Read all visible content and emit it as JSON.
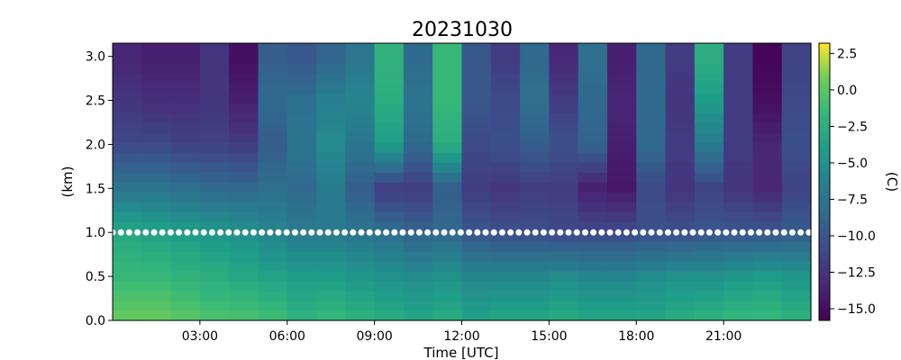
{
  "chart_data": {
    "type": "heatmap",
    "title": "20231030",
    "xlabel": "Time [UTC]",
    "ylabel": "(km)",
    "colorbar_label": "(C)",
    "colormap": "viridis",
    "xlim_hours": [
      0,
      24
    ],
    "ylim_km": [
      0,
      3.15
    ],
    "x_ticks": [
      "03:00",
      "06:00",
      "09:00",
      "12:00",
      "15:00",
      "18:00",
      "21:00"
    ],
    "y_ticks": [
      "0.0",
      "0.5",
      "1.0",
      "1.5",
      "2.0",
      "2.5",
      "3.0"
    ],
    "colorbar_range": [
      -15.8,
      3.2
    ],
    "colorbar_ticks": [
      "2.5",
      "0.0",
      "−2.5",
      "−5.0",
      "−7.5",
      "−10.0",
      "−12.5",
      "−15.0"
    ],
    "marker_line": {
      "height_km": 1.0,
      "color": "#ffffff",
      "style": "dotted"
    },
    "height_levels_km": [
      0.0,
      0.5,
      1.0,
      1.5,
      2.0,
      2.5,
      3.0
    ],
    "time_hours": [
      0.5,
      1.5,
      2.5,
      3.5,
      4.5,
      5.5,
      6.5,
      7.5,
      8.5,
      9.5,
      10.5,
      11.5,
      12.5,
      13.5,
      14.5,
      15.5,
      16.5,
      17.5,
      18.5,
      19.5,
      20.5,
      21.5,
      22.5,
      23.5
    ],
    "temperature_c": [
      [
        0.5,
        -1.5,
        -3.0,
        -7.5,
        -11.0,
        -12.5,
        -13.5
      ],
      [
        0.5,
        -1.5,
        -3.5,
        -7.5,
        -11.0,
        -13.0,
        -14.0
      ],
      [
        0.0,
        -2.0,
        -4.0,
        -8.0,
        -11.5,
        -13.0,
        -14.0
      ],
      [
        -0.5,
        -2.5,
        -4.5,
        -8.5,
        -11.5,
        -12.5,
        -12.5
      ],
      [
        -0.5,
        -3.0,
        -5.0,
        -8.5,
        -12.0,
        -14.0,
        -15.0
      ],
      [
        -1.0,
        -3.5,
        -6.0,
        -8.0,
        -9.5,
        -8.5,
        -9.5
      ],
      [
        -2.0,
        -4.0,
        -7.0,
        -8.5,
        -7.5,
        -8.0,
        -10.0
      ],
      [
        -1.5,
        -4.0,
        -7.0,
        -7.0,
        -5.5,
        -6.5,
        -9.0
      ],
      [
        -2.0,
        -4.5,
        -7.5,
        -9.5,
        -7.5,
        -6.0,
        -7.5
      ],
      [
        -2.5,
        -5.0,
        -8.0,
        -12.0,
        -4.0,
        -2.5,
        -2.0
      ],
      [
        -3.0,
        -5.5,
        -9.0,
        -12.0,
        -8.5,
        -7.5,
        -8.5
      ],
      [
        -2.5,
        -5.0,
        -8.5,
        -9.5,
        -2.5,
        -1.5,
        -1.5
      ],
      [
        -3.5,
        -6.0,
        -10.0,
        -12.0,
        -11.0,
        -10.0,
        -10.0
      ],
      [
        -3.0,
        -6.0,
        -10.5,
        -12.5,
        -10.5,
        -11.0,
        -12.0
      ],
      [
        -3.0,
        -6.0,
        -10.5,
        -12.0,
        -9.5,
        -8.0,
        -8.5
      ],
      [
        -2.5,
        -5.5,
        -11.0,
        -12.0,
        -10.5,
        -12.0,
        -13.5
      ],
      [
        -3.0,
        -6.0,
        -11.0,
        -14.0,
        -9.0,
        -8.5,
        -8.0
      ],
      [
        -3.0,
        -6.0,
        -11.0,
        -14.5,
        -14.0,
        -13.5,
        -14.0
      ],
      [
        -3.0,
        -5.5,
        -10.5,
        -11.0,
        -8.5,
        -8.5,
        -8.5
      ],
      [
        -2.5,
        -5.0,
        -10.5,
        -12.5,
        -12.0,
        -12.5,
        -12.0
      ],
      [
        -2.0,
        -5.0,
        -10.0,
        -11.5,
        -7.0,
        -4.0,
        -2.5
      ],
      [
        -1.5,
        -4.5,
        -10.0,
        -12.5,
        -12.0,
        -12.0,
        -12.0
      ],
      [
        -1.5,
        -4.0,
        -10.0,
        -13.5,
        -13.5,
        -15.0,
        -15.5
      ],
      [
        -2.0,
        -4.5,
        -9.5,
        -11.5,
        -10.5,
        -11.0,
        -11.5
      ]
    ]
  }
}
